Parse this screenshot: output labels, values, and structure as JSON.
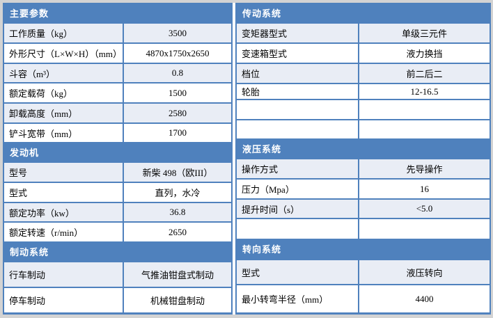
{
  "colors": {
    "accent_header_bg": "#4f81bd",
    "table_border": "#4f81bd",
    "banded_row_bg": "#e9edf5",
    "header_text": "#ffffff",
    "page_background": "#d3d3d3"
  },
  "left": {
    "sections": [
      {
        "title": "主要参数",
        "rows": [
          {
            "label": "工作质量（kg）",
            "value": "3500"
          },
          {
            "label": "外形尺寸（L×W×H）（mm）",
            "value": "4870x1750x2650"
          },
          {
            "label": "斗容（m³）",
            "value": "0.8"
          },
          {
            "label": "额定载荷（kg）",
            "value": "1500"
          },
          {
            "label": "卸载高度（mm）",
            "value": "2580"
          },
          {
            "label": "铲斗宽带（mm）",
            "value": "1700"
          }
        ]
      },
      {
        "title": "发动机",
        "rows": [
          {
            "label": "型号",
            "value": "新柴 498（欧III）"
          },
          {
            "label": "型式",
            "value": "直列，水冷"
          },
          {
            "label": "额定功率（kw）",
            "value": "36.8"
          },
          {
            "label": "额定转速（r/min）",
            "value": "2650"
          }
        ]
      },
      {
        "title": "制动系统",
        "rows": [
          {
            "label": "行车制动",
            "value": "气推油钳盘式制动"
          },
          {
            "label": "停车制动",
            "value": "机械钳盘制动"
          }
        ]
      }
    ]
  },
  "right": {
    "sections": [
      {
        "title": "传动系统",
        "rows": [
          {
            "label": "变矩器型式",
            "value": "单级三元件"
          },
          {
            "label": "变速箱型式",
            "value": "液力换挡"
          },
          {
            "label": "档位",
            "value": "前二后二"
          },
          {
            "label": "轮胎",
            "value": "12-16.5"
          },
          {
            "label": "",
            "value": ""
          },
          {
            "label": "",
            "value": ""
          }
        ]
      },
      {
        "title": "液压系统",
        "rows": [
          {
            "label": "操作方式",
            "value": "先导操作"
          },
          {
            "label": "压力（Mpa）",
            "value": "16"
          },
          {
            "label": "提升时间（s）",
            "value": "<5.0"
          },
          {
            "label": "",
            "value": ""
          }
        ]
      },
      {
        "title": "转向系统",
        "rows": [
          {
            "label": "型式",
            "value": "液压转向"
          },
          {
            "label": "最小转弯半径（mm）",
            "value": "4400"
          }
        ]
      }
    ]
  }
}
